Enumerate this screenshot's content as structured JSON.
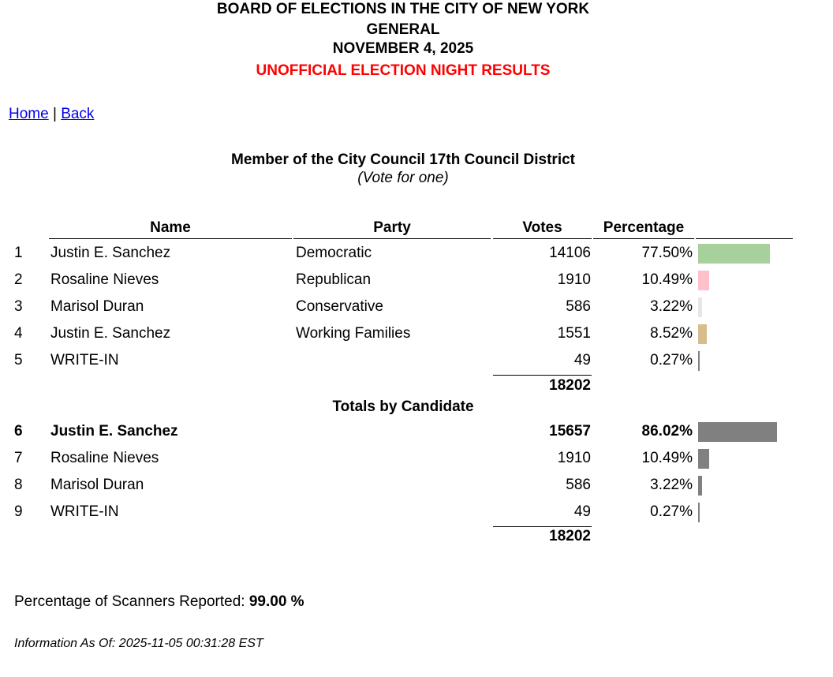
{
  "header": {
    "lines": [
      "BOARD OF ELECTIONS IN THE CITY OF NEW YORK",
      "GENERAL",
      "NOVEMBER 4, 2025"
    ],
    "notice": "UNOFFICIAL ELECTION NIGHT RESULTS"
  },
  "nav": {
    "links": [
      "Home",
      "Back"
    ],
    "separator": "|"
  },
  "race": {
    "title": "Member of the City Council 17th Council District",
    "subtitle": "(Vote for one)"
  },
  "table": {
    "columns": [
      "Name",
      "Party",
      "Votes",
      "Percentage"
    ],
    "rows": [
      {
        "number": 1,
        "name": "Justin E. Sanchez",
        "party": "Democratic",
        "votes": 14106,
        "percentage": {
          "value": 77.5,
          "label": "77.50%"
        },
        "bar_color": "#a8d09c"
      },
      {
        "number": 2,
        "name": "Rosaline Nieves",
        "party": "Republican",
        "votes": 1910,
        "percentage": {
          "value": 10.49,
          "label": "10.49%"
        },
        "bar_color": "#ffc0cb"
      },
      {
        "number": 3,
        "name": "Marisol Duran",
        "party": "Conservative",
        "votes": 586,
        "percentage": {
          "value": 3.22,
          "label": "3.22%"
        },
        "bar_color": "#e6e6e6"
      },
      {
        "number": 4,
        "name": "Justin E. Sanchez",
        "party": "Working Families",
        "votes": 1551,
        "percentage": {
          "value": 8.52,
          "label": "8.52%"
        },
        "bar_color": "#d8bd8c"
      },
      {
        "number": 5,
        "name": "WRITE-IN",
        "votes": 49,
        "percentage": {
          "value": 0.27,
          "label": "0.27%"
        },
        "bar_color": "#808080"
      }
    ],
    "total": 18202,
    "totals_heading": "Totals by Candidate",
    "candidate_rows": [
      {
        "number": 6,
        "name": "Justin E. Sanchez",
        "votes": 15657,
        "percentage": {
          "value": 86.02,
          "label": "86.02%"
        },
        "bold": true
      },
      {
        "number": 7,
        "name": "Rosaline Nieves",
        "votes": 1910,
        "percentage": {
          "value": 10.49,
          "label": "10.49%"
        }
      },
      {
        "number": 8,
        "name": "Marisol Duran",
        "votes": 586,
        "percentage": {
          "value": 3.22,
          "label": "3.22%"
        }
      },
      {
        "number": 9,
        "name": "WRITE-IN",
        "votes": 49,
        "percentage": {
          "value": 0.27,
          "label": "0.27%"
        }
      }
    ],
    "candidate_total": 18202,
    "candidate_bar_color": "#808080"
  },
  "footer": {
    "scanners_label": "Percentage of Scanners Reported:",
    "scanners_value": "99.00 %",
    "info": "Information As Of: 2025-11-05 00:31:28 EST"
  }
}
